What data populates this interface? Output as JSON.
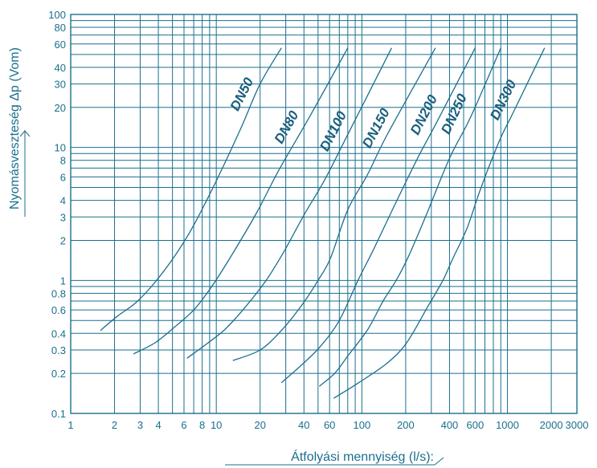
{
  "chart_data": {
    "type": "line",
    "x_scale": "log",
    "y_scale": "log",
    "xlim": [
      1,
      3000
    ],
    "ylim": [
      0.1,
      100
    ],
    "grid": true,
    "xlabel": "Átfolyási mennyiség (l/s):",
    "ylabel": "Nyomásveszteség Δp (Vom)",
    "x_ticks": [
      {
        "value": 1,
        "label": "1"
      },
      {
        "value": 2,
        "label": "2"
      },
      {
        "value": 3,
        "label": "3"
      },
      {
        "value": 4,
        "label": "4"
      },
      {
        "value": 6,
        "label": "6"
      },
      {
        "value": 8,
        "label": "8"
      },
      {
        "value": 10,
        "label": "10"
      },
      {
        "value": 20,
        "label": "20"
      },
      {
        "value": 40,
        "label": "40"
      },
      {
        "value": 60,
        "label": "60"
      },
      {
        "value": 100,
        "label": "100"
      },
      {
        "value": 200,
        "label": "200"
      },
      {
        "value": 400,
        "label": "400"
      },
      {
        "value": 600,
        "label": "600"
      },
      {
        "value": 1000,
        "label": "1000"
      },
      {
        "value": 2000,
        "label": "2000"
      },
      {
        "value": 3000,
        "label": "3000"
      }
    ],
    "y_ticks": [
      {
        "value": 0.1,
        "label": "0.1"
      },
      {
        "value": 0.2,
        "label": "0.2"
      },
      {
        "value": 0.3,
        "label": "0.3"
      },
      {
        "value": 0.4,
        "label": "0.4"
      },
      {
        "value": 0.6,
        "label": "0.6"
      },
      {
        "value": 0.8,
        "label": "0.8"
      },
      {
        "value": 1,
        "label": "1"
      },
      {
        "value": 2,
        "label": "2"
      },
      {
        "value": 3,
        "label": "3"
      },
      {
        "value": 4,
        "label": "4"
      },
      {
        "value": 6,
        "label": "6"
      },
      {
        "value": 8,
        "label": "8"
      },
      {
        "value": 10,
        "label": "10"
      },
      {
        "value": 20,
        "label": "20"
      },
      {
        "value": 30,
        "label": "30"
      },
      {
        "value": 40,
        "label": "40"
      },
      {
        "value": 60,
        "label": "60"
      },
      {
        "value": 80,
        "label": "80"
      },
      {
        "value": 100,
        "label": "100"
      }
    ],
    "x_grid": [
      1,
      2,
      3,
      4,
      5,
      6,
      7,
      8,
      9,
      10,
      20,
      30,
      40,
      50,
      60,
      70,
      80,
      90,
      100,
      200,
      300,
      400,
      500,
      600,
      700,
      800,
      900,
      1000,
      2000,
      3000
    ],
    "y_grid": [
      0.1,
      0.2,
      0.3,
      0.4,
      0.5,
      0.6,
      0.7,
      0.8,
      0.9,
      1,
      2,
      3,
      4,
      5,
      6,
      7,
      8,
      9,
      10,
      20,
      30,
      40,
      50,
      60,
      70,
      80,
      90,
      100
    ],
    "series": [
      {
        "name": "DN50",
        "points": [
          [
            1.6,
            0.42
          ],
          [
            2.1,
            0.54
          ],
          [
            2.8,
            0.68
          ],
          [
            3.8,
            0.97
          ],
          [
            5.3,
            1.58
          ],
          [
            7.0,
            2.6
          ],
          [
            10.0,
            5.6
          ],
          [
            14.6,
            13.6
          ],
          [
            20.0,
            30
          ],
          [
            28.0,
            56
          ]
        ]
      },
      {
        "name": "DN80",
        "points": [
          [
            2.7,
            0.28
          ],
          [
            3.8,
            0.34
          ],
          [
            5.1,
            0.44
          ],
          [
            7.1,
            0.61
          ],
          [
            9.5,
            0.93
          ],
          [
            13.0,
            1.6
          ],
          [
            19.0,
            3.25
          ],
          [
            27.0,
            6.8
          ],
          [
            44.0,
            17.2
          ],
          [
            80.0,
            56
          ]
        ]
      },
      {
        "name": "DN100",
        "points": [
          [
            6.3,
            0.26
          ],
          [
            8.8,
            0.34
          ],
          [
            11.5,
            0.43
          ],
          [
            16.0,
            0.64
          ],
          [
            22.0,
            1.0
          ],
          [
            29.0,
            1.63
          ],
          [
            40.0,
            3.1
          ],
          [
            56.0,
            5.8
          ],
          [
            80.0,
            12.5
          ],
          [
            160.0,
            56
          ]
        ]
      },
      {
        "name": "DN150",
        "points": [
          [
            13.0,
            0.25
          ],
          [
            20.0,
            0.3
          ],
          [
            28.0,
            0.42
          ],
          [
            39.0,
            0.66
          ],
          [
            50.0,
            1.0
          ],
          [
            61.0,
            1.48
          ],
          [
            80.0,
            3.4
          ],
          [
            109.0,
            6.2
          ],
          [
            150.0,
            12.6
          ],
          [
            320.0,
            56
          ]
        ]
      },
      {
        "name": "DN200",
        "points": [
          [
            28.0,
            0.17
          ],
          [
            40.0,
            0.24
          ],
          [
            52.0,
            0.32
          ],
          [
            70.0,
            0.5
          ],
          [
            94.0,
            1.0
          ],
          [
            120.0,
            1.7
          ],
          [
            160.0,
            3.3
          ],
          [
            240.0,
            8.2
          ],
          [
            330.0,
            15.8
          ],
          [
            600.0,
            56
          ]
        ]
      },
      {
        "name": "DN250",
        "points": [
          [
            51.0,
            0.16
          ],
          [
            65.0,
            0.2
          ],
          [
            80.0,
            0.27
          ],
          [
            110.0,
            0.43
          ],
          [
            140.0,
            0.7
          ],
          [
            172.0,
            1.0
          ],
          [
            210.0,
            1.53
          ],
          [
            280.0,
            3.2
          ],
          [
            400.0,
            8.3
          ],
          [
            560.0,
            17
          ],
          [
            900.0,
            56
          ]
        ]
      },
      {
        "name": "DN300",
        "points": [
          [
            64.0,
            0.13
          ],
          [
            95.0,
            0.17
          ],
          [
            150.0,
            0.24
          ],
          [
            203.0,
            0.34
          ],
          [
            280.0,
            0.62
          ],
          [
            360.0,
            1.0
          ],
          [
            420.0,
            1.45
          ],
          [
            530.0,
            2.5
          ],
          [
            650.0,
            4.8
          ],
          [
            880.0,
            11.2
          ],
          [
            1100.0,
            18.5
          ],
          [
            1800.0,
            56
          ]
        ]
      }
    ]
  }
}
